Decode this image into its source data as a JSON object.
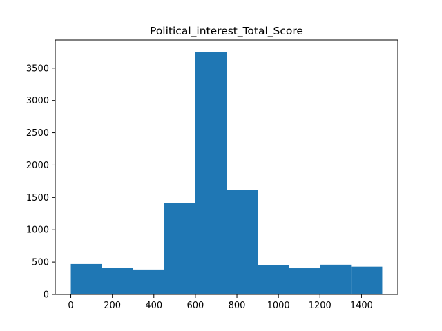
{
  "chart_data": {
    "type": "bar",
    "subtype": "histogram",
    "title": "Political_interest_Total_Score",
    "xlabel": "",
    "ylabel": "",
    "xlim": [
      -75,
      1575
    ],
    "ylim": [
      0,
      3935
    ],
    "x_ticks": [
      0,
      200,
      400,
      600,
      800,
      1000,
      1200,
      1400
    ],
    "y_ticks": [
      0,
      500,
      1000,
      1500,
      2000,
      2500,
      3000,
      3500
    ],
    "bin_edges": [
      0,
      150,
      300,
      450,
      600,
      750,
      900,
      1050,
      1200,
      1350,
      1500
    ],
    "values": [
      470,
      415,
      385,
      1410,
      3750,
      1620,
      450,
      405,
      460,
      430
    ],
    "bar_color": "#1f77b4",
    "grid": false,
    "legend": false
  }
}
